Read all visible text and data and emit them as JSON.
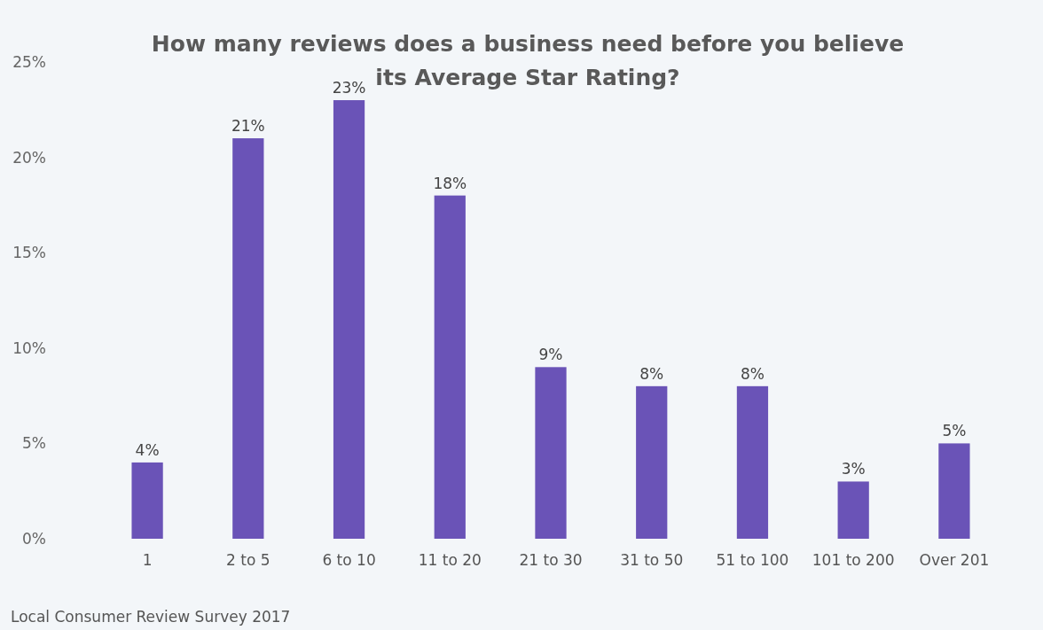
{
  "chart_data": {
    "type": "bar",
    "title": "How many reviews does a business need before you believe its Average Star Rating?",
    "categories": [
      "1",
      "2 to 5",
      "6 to 10",
      "11 to 20",
      "21 to 30",
      "31 to 50",
      "51 to 100",
      "101 to 200",
      "Over 201"
    ],
    "values": [
      4,
      21,
      23,
      18,
      9,
      8,
      8,
      3,
      5
    ],
    "value_labels": [
      "4%",
      "21%",
      "23%",
      "18%",
      "9%",
      "8%",
      "8%",
      "3%",
      "5%"
    ],
    "color": "#6a53b7",
    "ylim": [
      0,
      25
    ],
    "yticks": [
      {
        "value": 0,
        "label": "0%"
      },
      {
        "value": 5,
        "label": "5%"
      },
      {
        "value": 10,
        "label": "10%"
      },
      {
        "value": 15,
        "label": "15%"
      },
      {
        "value": 20,
        "label": "20%"
      },
      {
        "value": 25,
        "label": "25%"
      }
    ],
    "grid": false,
    "annotations": [
      "Local Consumer Review Survey 2017"
    ]
  }
}
